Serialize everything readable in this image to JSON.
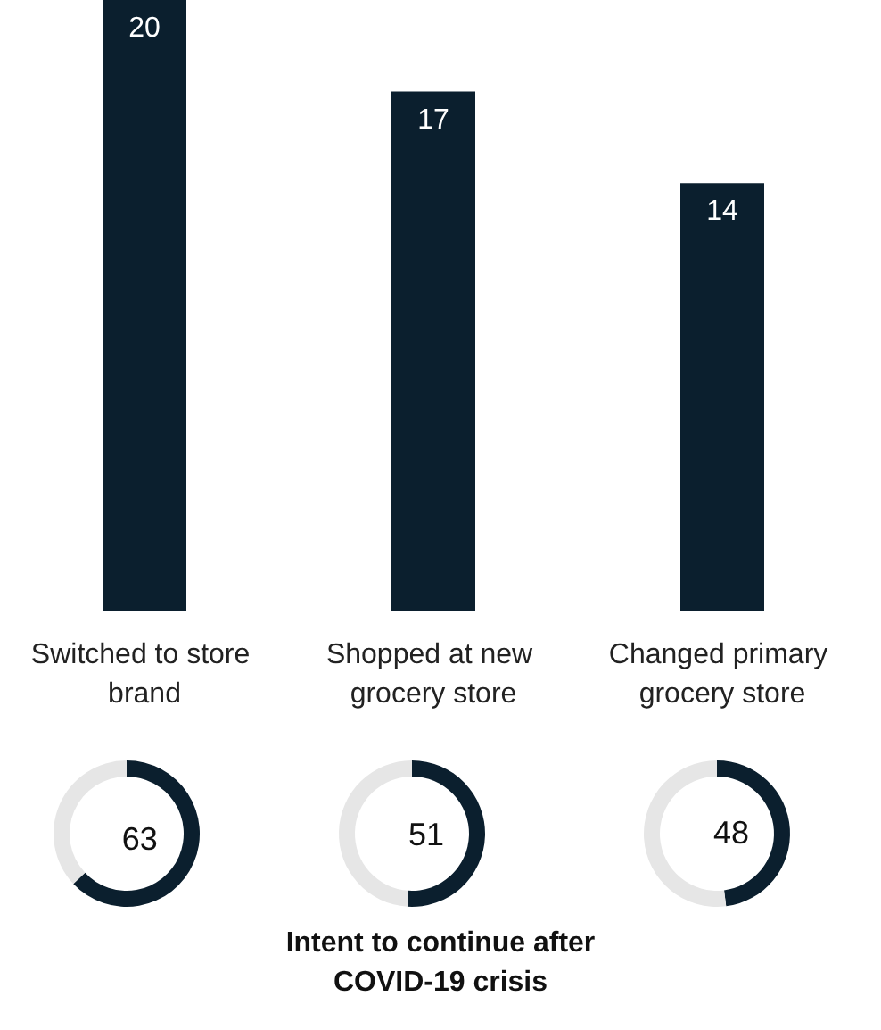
{
  "chart_data": [
    {
      "type": "bar",
      "categories": [
        "Switched to store brand",
        "Shopped at new grocery store",
        "Changed primary grocery store"
      ],
      "values": [
        20,
        17,
        14
      ],
      "color": "#0b1f2e",
      "data_labels": true,
      "annotations": [
        "Intent to continue after COVID-19 crisis"
      ]
    },
    {
      "type": "donut",
      "categories": [
        null,
        null
      ],
      "values": [
        63,
        37
      ],
      "colors": [
        "#0b1f2e",
        "#e6e6e6"
      ],
      "value_labels": [
        "63",
        null
      ]
    },
    {
      "type": "donut",
      "categories": [
        null,
        null
      ],
      "values": [
        51,
        49
      ],
      "colors": [
        "#0b1f2e",
        "#e6e6e6"
      ],
      "value_labels": [
        "51",
        null
      ]
    },
    {
      "type": "donut",
      "categories": [
        null,
        null
      ],
      "values": [
        48,
        52
      ],
      "colors": [
        "#0b1f2e",
        "#e6e6e6"
      ],
      "value_labels": [
        "48",
        null
      ]
    }
  ]
}
